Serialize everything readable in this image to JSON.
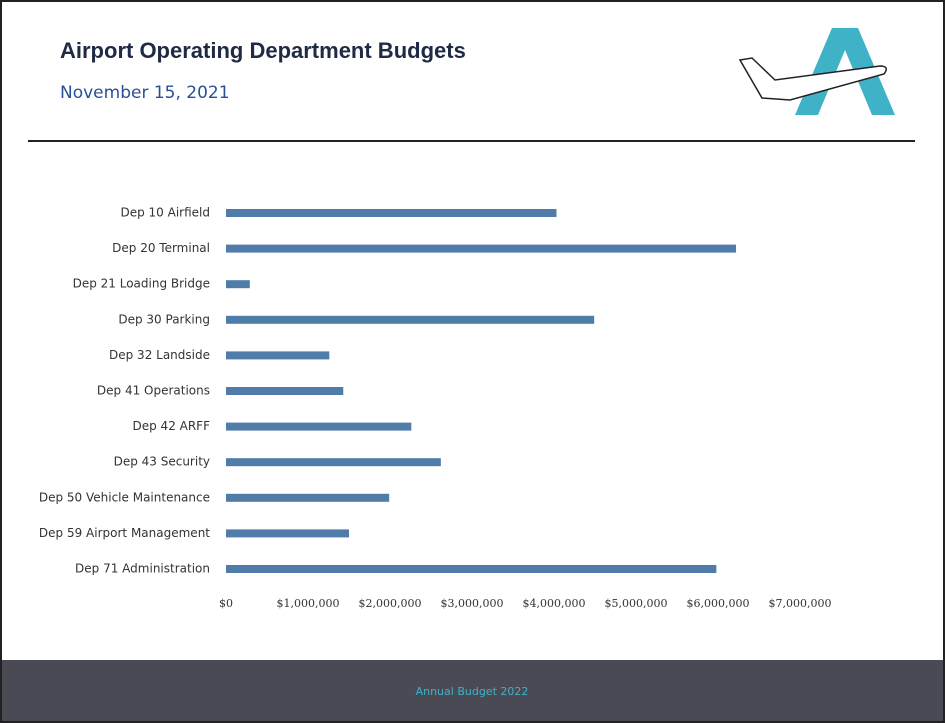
{
  "chart_data": {
    "type": "barh",
    "title": "Airport Operating Department Budgets",
    "subtitle": "November 15, 2021",
    "categories": [
      "Dep 10 Airfield",
      "Dep 20 Terminal",
      "Dep 21 Loading Bridge",
      "Dep 30 Parking",
      "Dep 32 Landside",
      "Dep 41 Operations",
      "Dep 42 ARFF",
      "Dep 43 Security",
      "Dep 50 Vehicle Maintenance",
      "Dep 59 Airport Management",
      "Dep 71 Administration"
    ],
    "values": [
      4030000,
      6220000,
      290000,
      4490000,
      1260000,
      1430000,
      2260000,
      2620000,
      1990000,
      1500000,
      5980000
    ],
    "color": "#4f7ca8",
    "xlim": [
      0,
      7000000
    ],
    "xticks": [
      0,
      {
        "value": 1000000,
        "label": "$1,000,000"
      },
      {
        "value": 2000000,
        "label": "$2,000,000"
      },
      {
        "value": 3000000,
        "label": "$3,000,000"
      },
      {
        "value": 4000000,
        "label": "$4,000,000"
      },
      {
        "value": 5000000,
        "label": "$5,000,000"
      },
      {
        "value": 6000000,
        "label": "$6,000,000"
      },
      {
        "value": 7000000,
        "label": "$7,000,000"
      }
    ],
    "xtick_zero_label": "$0",
    "grid": false
  },
  "footer": "Annual Budget 2022"
}
